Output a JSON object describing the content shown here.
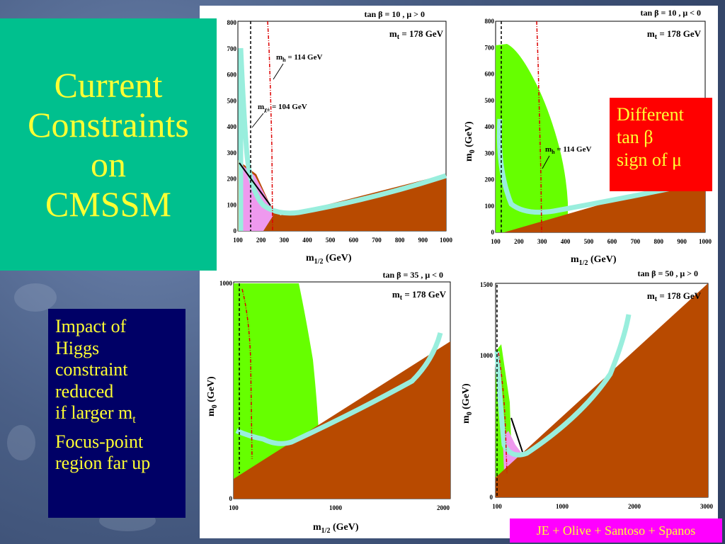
{
  "title": {
    "line1": "Current",
    "line2": "Constraints",
    "line3": "on",
    "line4": "CMSSM"
  },
  "impact": {
    "line1": "Impact of",
    "line2": "Higgs",
    "line3": "constraint",
    "line4": "reduced",
    "line5_prefix": "if larger m",
    "line5_sub": "t",
    "line6": "Focus-point",
    "line7": "region far up"
  },
  "different": {
    "line1": "Different",
    "line2": "tan β",
    "line3": "sign of μ"
  },
  "credit": "JE + Olive + Santoso + Spanos",
  "plots": {
    "p1": {
      "header": "tan β = 10 ,  μ > 0",
      "mt_prefix": "m",
      "mt_sub": "t",
      "mt_rest": " = 178 GeV",
      "ann_mh_prefix": "m",
      "ann_mh_sub": "h",
      "ann_mh_rest": "  = 114 GeV",
      "ann_mchi_prefix": "m",
      "ann_mchi_sub": "χ±",
      "ann_mchi_rest": "  = 104 GeV",
      "yticks": [
        "0",
        "100",
        "200",
        "300",
        "400",
        "500",
        "600",
        "700",
        "800"
      ],
      "xticks": [
        "100",
        "200",
        "300",
        "400",
        "500",
        "600",
        "700",
        "800",
        "900",
        "1000"
      ],
      "xlabel_prefix": "m",
      "xlabel_sub": "1/2",
      "xlabel_rest": " (GeV)"
    },
    "p2": {
      "header": "tan β = 10 ,  μ < 0",
      "mt_prefix": "m",
      "mt_sub": "t",
      "mt_rest": " = 178 GeV",
      "ann_mh_prefix": "m",
      "ann_mh_sub": "h",
      "ann_mh_rest": " = 114 GeV",
      "yticks": [
        "0",
        "100",
        "200",
        "300",
        "400",
        "500",
        "600",
        "700",
        "800"
      ],
      "xticks": [
        "100",
        "200",
        "300",
        "400",
        "500",
        "600",
        "700",
        "800",
        "900",
        "1000"
      ],
      "ylabel_prefix": "m",
      "ylabel_sub": "0",
      "ylabel_rest": " (GeV)",
      "xlabel_prefix": "m",
      "xlabel_sub": "1/2",
      "xlabel_rest": " (GeV)"
    },
    "p3": {
      "header": "tan β = 35 ,  μ < 0",
      "mt_prefix": "m",
      "mt_sub": "t",
      "mt_rest": " = 178 GeV",
      "yticks": [
        "0",
        "1000"
      ],
      "xticks": [
        "100",
        "1000",
        "2000"
      ],
      "ylabel_prefix": "m",
      "ylabel_sub": "0",
      "ylabel_rest": " (GeV)",
      "xlabel_prefix": "m",
      "xlabel_sub": "1/2",
      "xlabel_rest": " (GeV)"
    },
    "p4": {
      "header": "tan β = 50 ,  μ > 0",
      "mt_prefix": "m",
      "mt_sub": "t",
      "mt_rest": " = 178 GeV",
      "yticks": [
        "0",
        "1000",
        "1500"
      ],
      "xticks": [
        "100",
        "1000",
        "2000",
        "3000"
      ],
      "ylabel_prefix": "m",
      "ylabel_sub": "0",
      "ylabel_rest": " (GeV)"
    }
  },
  "colors": {
    "green": "#66ff00",
    "brown": "#b84a00",
    "cyan": "#99eedd",
    "pink": "#ee99ee",
    "title_bg": "#00c08e",
    "text_yellow": "#ffff33"
  }
}
